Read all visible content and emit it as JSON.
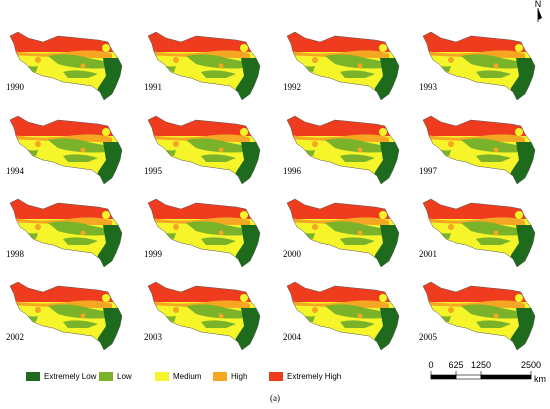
{
  "years": [
    "1990",
    "1991",
    "1992",
    "1993",
    "1994",
    "1995",
    "1996",
    "1997",
    "1998",
    "1999",
    "2000",
    "2001",
    "2002",
    "2003",
    "2004",
    "2005"
  ],
  "legend": [
    {
      "label": "Extremely Low",
      "color": "#1e6b1e"
    },
    {
      "label": "Low",
      "color": "#7ab32a"
    },
    {
      "label": "Medium",
      "color": "#f5f52a"
    },
    {
      "label": "High",
      "color": "#f5a623"
    },
    {
      "label": "Extremely High",
      "color": "#f03c1e"
    }
  ],
  "scale_bar": {
    "ticks": [
      0,
      625,
      1250,
      2500
    ],
    "unit": "km"
  },
  "north": "N",
  "caption": "(a)"
}
